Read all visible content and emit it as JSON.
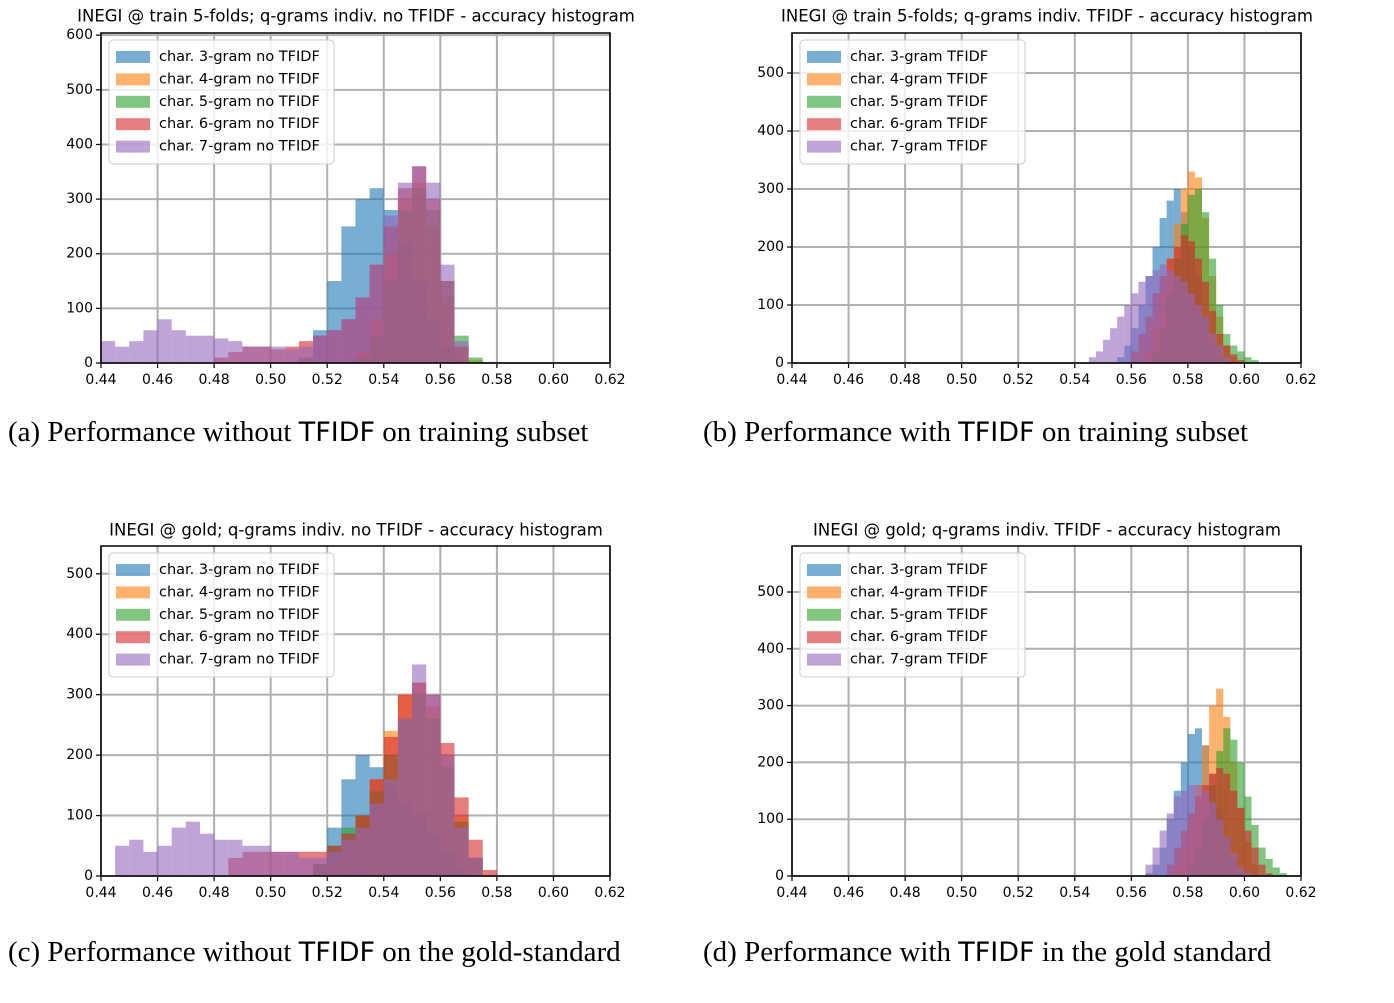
{
  "chart_data": [
    {
      "type": "histogram",
      "title": "INEGI @ train 5-folds;  q-grams indiv. no TFIDF - accuracy histogram",
      "caption": [
        "(a) Performance without ",
        "TFIDF",
        " on training subset"
      ],
      "bins": [
        0.44,
        0.445,
        0.45,
        0.455,
        0.46,
        0.465,
        0.47,
        0.475,
        0.48,
        0.485,
        0.49,
        0.495,
        0.5,
        0.505,
        0.51,
        0.515,
        0.52,
        0.525,
        0.53,
        0.535,
        0.54,
        0.545,
        0.55,
        0.555,
        0.56,
        0.565,
        0.57,
        0.575,
        0.58
      ],
      "series": [
        {
          "name": "char. 3-gram no TFIDF",
          "color": "#1f77b4",
          "values": [
            0,
            0,
            0,
            0,
            0,
            0,
            0,
            0,
            0,
            0,
            0,
            0,
            0,
            0,
            10,
            60,
            150,
            250,
            300,
            320,
            280,
            220,
            150,
            80,
            30,
            5,
            0,
            0
          ]
        },
        {
          "name": "char. 4-gram no TFIDF",
          "color": "#ff7f0e",
          "values": [
            0,
            0,
            0,
            0,
            0,
            0,
            0,
            0,
            0,
            0,
            0,
            0,
            0,
            0,
            0,
            0,
            0,
            0,
            20,
            80,
            200,
            300,
            330,
            250,
            120,
            30,
            5,
            0
          ]
        },
        {
          "name": "char. 5-gram no TFIDF",
          "color": "#2ca02c",
          "values": [
            0,
            0,
            0,
            0,
            0,
            0,
            0,
            0,
            0,
            0,
            0,
            0,
            0,
            0,
            0,
            0,
            0,
            0,
            10,
            50,
            150,
            280,
            320,
            280,
            150,
            50,
            10,
            2
          ]
        },
        {
          "name": "char. 6-gram no TFIDF",
          "color": "#d62728",
          "values": [
            0,
            0,
            0,
            0,
            0,
            0,
            0,
            0,
            10,
            20,
            30,
            30,
            25,
            30,
            40,
            50,
            60,
            80,
            120,
            180,
            250,
            320,
            360,
            300,
            150,
            30,
            0,
            0
          ]
        },
        {
          "name": "char. 7-gram no TFIDF",
          "color": "#9467bd",
          "values": [
            40,
            30,
            40,
            60,
            80,
            60,
            50,
            50,
            45,
            40,
            30,
            30,
            30,
            25,
            30,
            50,
            60,
            80,
            120,
            180,
            270,
            330,
            360,
            330,
            180,
            40,
            0,
            0
          ]
        }
      ],
      "alpha": 0.6,
      "xlim": [
        0.44,
        0.62
      ],
      "ylim": [
        0,
        604
      ],
      "xticks": [
        0.44,
        0.46,
        0.48,
        {
          "value": 0.5,
          "label": "0.50"
        },
        0.52,
        0.54,
        0.56,
        0.58,
        {
          "value": 0.6,
          "label": "0.60"
        },
        0.62
      ],
      "yticks": [
        0,
        100,
        200,
        300,
        400,
        500,
        600
      ],
      "grid": true,
      "legend": "upper left"
    },
    {
      "type": "histogram",
      "title": "INEGI @ train 5-folds;  q-grams indiv. TFIDF - accuracy histogram",
      "caption": [
        "(b) Performance with ",
        "TFIDF",
        " on training subset"
      ],
      "bins": [
        0.545,
        0.5475,
        0.55,
        0.5525,
        0.555,
        0.5575,
        0.56,
        0.5625,
        0.565,
        0.5675,
        0.57,
        0.5725,
        0.575,
        0.5775,
        0.58,
        0.5825,
        0.585,
        0.5875,
        0.59,
        0.5925,
        0.595,
        0.5975,
        0.6,
        0.6025,
        0.605,
        0.6075,
        0.61
      ],
      "series": [
        {
          "name": "char. 3-gram TFIDF",
          "color": "#1f77b4",
          "values": [
            0,
            0,
            0,
            0,
            10,
            30,
            60,
            100,
            150,
            200,
            250,
            280,
            300,
            260,
            200,
            150,
            80,
            30,
            10,
            0,
            0,
            0,
            0,
            0,
            0,
            0
          ]
        },
        {
          "name": "char. 4-gram TFIDF",
          "color": "#ff7f0e",
          "values": [
            0,
            0,
            0,
            0,
            0,
            0,
            0,
            0,
            20,
            60,
            120,
            180,
            240,
            300,
            330,
            320,
            250,
            150,
            80,
            30,
            10,
            0,
            0,
            0,
            0,
            0
          ]
        },
        {
          "name": "char. 5-gram TFIDF",
          "color": "#2ca02c",
          "values": [
            0,
            0,
            0,
            0,
            0,
            0,
            0,
            0,
            0,
            20,
            60,
            120,
            180,
            240,
            290,
            300,
            260,
            180,
            100,
            50,
            30,
            20,
            10,
            5,
            0,
            0
          ]
        },
        {
          "name": "char. 6-gram TFIDF",
          "color": "#d62728",
          "values": [
            0,
            0,
            0,
            0,
            0,
            0,
            20,
            50,
            80,
            120,
            150,
            180,
            200,
            220,
            210,
            180,
            140,
            90,
            50,
            30,
            15,
            5,
            0,
            0,
            0,
            0
          ]
        },
        {
          "name": "char. 7-gram TFIDF",
          "color": "#9467bd",
          "values": [
            10,
            20,
            40,
            60,
            80,
            100,
            120,
            140,
            150,
            160,
            170,
            160,
            150,
            140,
            120,
            100,
            80,
            50,
            30,
            10,
            0,
            0,
            0,
            0,
            0,
            0
          ]
        }
      ],
      "alpha": 0.6,
      "xlim": [
        0.44,
        0.62
      ],
      "ylim": [
        0,
        569
      ],
      "xticks": [
        0.44,
        0.46,
        0.48,
        {
          "value": 0.5,
          "label": "0.50"
        },
        0.52,
        0.54,
        0.56,
        0.58,
        {
          "value": 0.6,
          "label": "0.60"
        },
        0.62
      ],
      "yticks": [
        0,
        100,
        200,
        300,
        400,
        500
      ],
      "grid": true,
      "legend": "upper left"
    },
    {
      "type": "histogram",
      "title": "INEGI @ gold;  q-grams indiv. no TFIDF - accuracy histogram",
      "caption": [
        "(c) Performance without ",
        "TFIDF",
        " on the gold-standard"
      ],
      "bins": [
        0.445,
        0.45,
        0.455,
        0.46,
        0.465,
        0.47,
        0.475,
        0.48,
        0.485,
        0.49,
        0.495,
        0.5,
        0.505,
        0.51,
        0.515,
        0.52,
        0.525,
        0.53,
        0.535,
        0.54,
        0.545,
        0.55,
        0.555,
        0.56,
        0.565,
        0.57,
        0.575,
        0.58
      ],
      "series": [
        {
          "name": "char. 3-gram no TFIDF",
          "color": "#1f77b4",
          "values": [
            0,
            0,
            0,
            0,
            0,
            0,
            0,
            0,
            0,
            0,
            0,
            0,
            0,
            0,
            20,
            80,
            160,
            200,
            180,
            150,
            120,
            100,
            70,
            40,
            10,
            0,
            0
          ]
        },
        {
          "name": "char. 4-gram no TFIDF",
          "color": "#ff7f0e",
          "values": [
            0,
            0,
            0,
            0,
            0,
            0,
            0,
            0,
            0,
            0,
            0,
            0,
            0,
            0,
            0,
            20,
            60,
            100,
            160,
            240,
            300,
            320,
            280,
            200,
            100,
            30,
            0
          ]
        },
        {
          "name": "char. 5-gram no TFIDF",
          "color": "#2ca02c",
          "values": [
            0,
            0,
            0,
            0,
            0,
            0,
            0,
            0,
            0,
            0,
            0,
            0,
            0,
            0,
            20,
            50,
            80,
            100,
            140,
            200,
            260,
            300,
            260,
            180,
            90,
            30,
            0
          ]
        },
        {
          "name": "char. 6-gram no TFIDF",
          "color": "#d62728",
          "values": [
            0,
            0,
            0,
            0,
            0,
            0,
            0,
            0,
            30,
            40,
            40,
            40,
            40,
            40,
            40,
            50,
            70,
            100,
            160,
            230,
            300,
            320,
            300,
            220,
            130,
            60,
            10
          ]
        },
        {
          "name": "char. 7-gram no TFIDF",
          "color": "#9467bd",
          "values": [
            50,
            60,
            40,
            50,
            80,
            90,
            70,
            60,
            60,
            50,
            50,
            40,
            40,
            30,
            30,
            40,
            60,
            80,
            120,
            160,
            260,
            350,
            300,
            200,
            80,
            30,
            0
          ]
        }
      ],
      "alpha": 0.6,
      "xlim": [
        0.44,
        0.62
      ],
      "ylim": [
        0,
        546
      ],
      "xticks": [
        0.44,
        0.46,
        0.48,
        {
          "value": 0.5,
          "label": "0.50"
        },
        0.52,
        0.54,
        0.56,
        0.58,
        {
          "value": 0.6,
          "label": "0.60"
        },
        0.62
      ],
      "yticks": [
        0,
        100,
        200,
        300,
        400,
        500
      ],
      "grid": true,
      "legend": "upper left"
    },
    {
      "type": "histogram",
      "title": "INEGI @ gold;  q-grams indiv. TFIDF - accuracy histogram",
      "caption": [
        "(d) Performance with ",
        "TFIDF",
        " in the gold standard"
      ],
      "bins": [
        0.565,
        0.5675,
        0.57,
        0.5725,
        0.575,
        0.5775,
        0.58,
        0.5825,
        0.585,
        0.5875,
        0.59,
        0.5925,
        0.595,
        0.5975,
        0.6,
        0.6025,
        0.605,
        0.6075,
        0.61,
        0.6125,
        0.615
      ],
      "series": [
        {
          "name": "char. 3-gram TFIDF",
          "color": "#1f77b4",
          "values": [
            5,
            20,
            50,
            100,
            150,
            200,
            250,
            260,
            230,
            180,
            120,
            70,
            30,
            10,
            0,
            0,
            0,
            0,
            0,
            0
          ]
        },
        {
          "name": "char. 4-gram TFIDF",
          "color": "#ff7f0e",
          "values": [
            0,
            0,
            0,
            0,
            20,
            50,
            100,
            160,
            230,
            300,
            330,
            280,
            200,
            120,
            60,
            20,
            0,
            0,
            0,
            0
          ]
        },
        {
          "name": "char. 5-gram TFIDF",
          "color": "#2ca02c",
          "values": [
            0,
            0,
            0,
            0,
            0,
            0,
            20,
            50,
            100,
            160,
            220,
            260,
            240,
            200,
            140,
            90,
            50,
            30,
            15,
            5
          ]
        },
        {
          "name": "char. 6-gram TFIDF",
          "color": "#d62728",
          "values": [
            0,
            0,
            0,
            20,
            50,
            80,
            110,
            140,
            160,
            180,
            190,
            180,
            150,
            120,
            80,
            50,
            20,
            5,
            0,
            0
          ]
        },
        {
          "name": "char. 7-gram TFIDF",
          "color": "#9467bd",
          "values": [
            20,
            50,
            80,
            110,
            140,
            150,
            160,
            160,
            150,
            130,
            100,
            70,
            40,
            15,
            5,
            0,
            0,
            0,
            0,
            0
          ]
        }
      ],
      "alpha": 0.6,
      "xlim": [
        0.44,
        0.62
      ],
      "ylim": [
        0,
        581
      ],
      "xticks": [
        0.44,
        0.46,
        0.48,
        {
          "value": 0.5,
          "label": "0.50"
        },
        0.52,
        0.54,
        0.56,
        0.58,
        {
          "value": 0.6,
          "label": "0.60"
        },
        0.62
      ],
      "yticks": [
        0,
        100,
        200,
        300,
        400,
        500
      ],
      "grid": true,
      "legend": "upper left"
    }
  ]
}
